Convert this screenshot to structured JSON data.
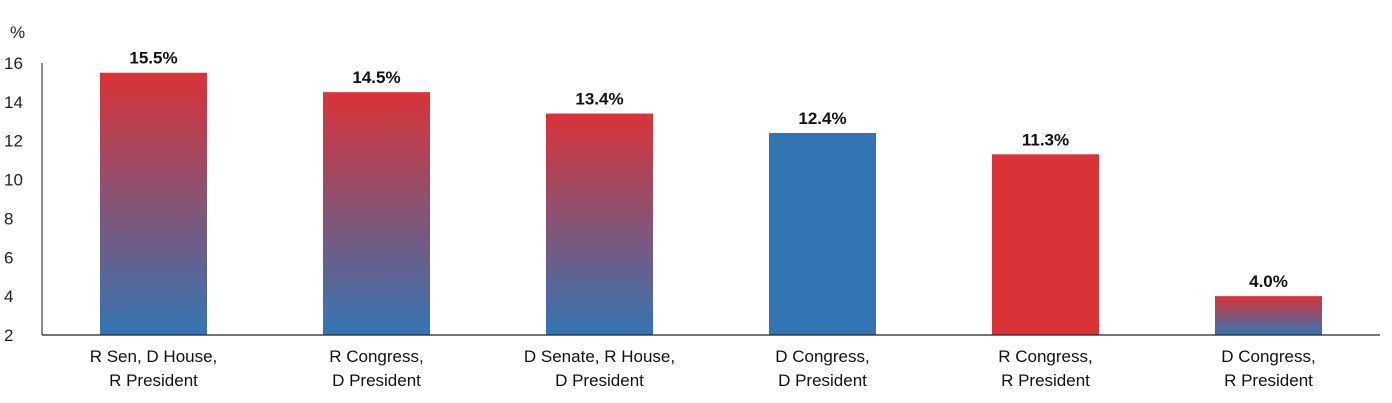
{
  "chart_data": {
    "type": "bar",
    "unit_label": "%",
    "categories": [
      [
        "R Sen, D House,",
        "R President"
      ],
      [
        "R Congress,",
        "D President"
      ],
      [
        "D Senate, R House,",
        "D President"
      ],
      [
        "D Congress,",
        "D President"
      ],
      [
        "R Congress,",
        "R President"
      ],
      [
        "D Congress,",
        "R President"
      ]
    ],
    "values": [
      15.5,
      14.5,
      13.4,
      12.4,
      11.3,
      4.0
    ],
    "data_labels": [
      "15.5%",
      "14.5%",
      "13.4%",
      "12.4%",
      "11.3%",
      "4.0%"
    ],
    "fills": [
      "split",
      "split",
      "split",
      "blue",
      "red",
      "split"
    ],
    "ylim": [
      2,
      16
    ],
    "yticks": [
      2,
      4,
      6,
      8,
      10,
      12,
      14,
      16
    ],
    "grid": false,
    "legend": "none",
    "colors": {
      "red": "#d93338",
      "blue": "#3375b3"
    }
  }
}
